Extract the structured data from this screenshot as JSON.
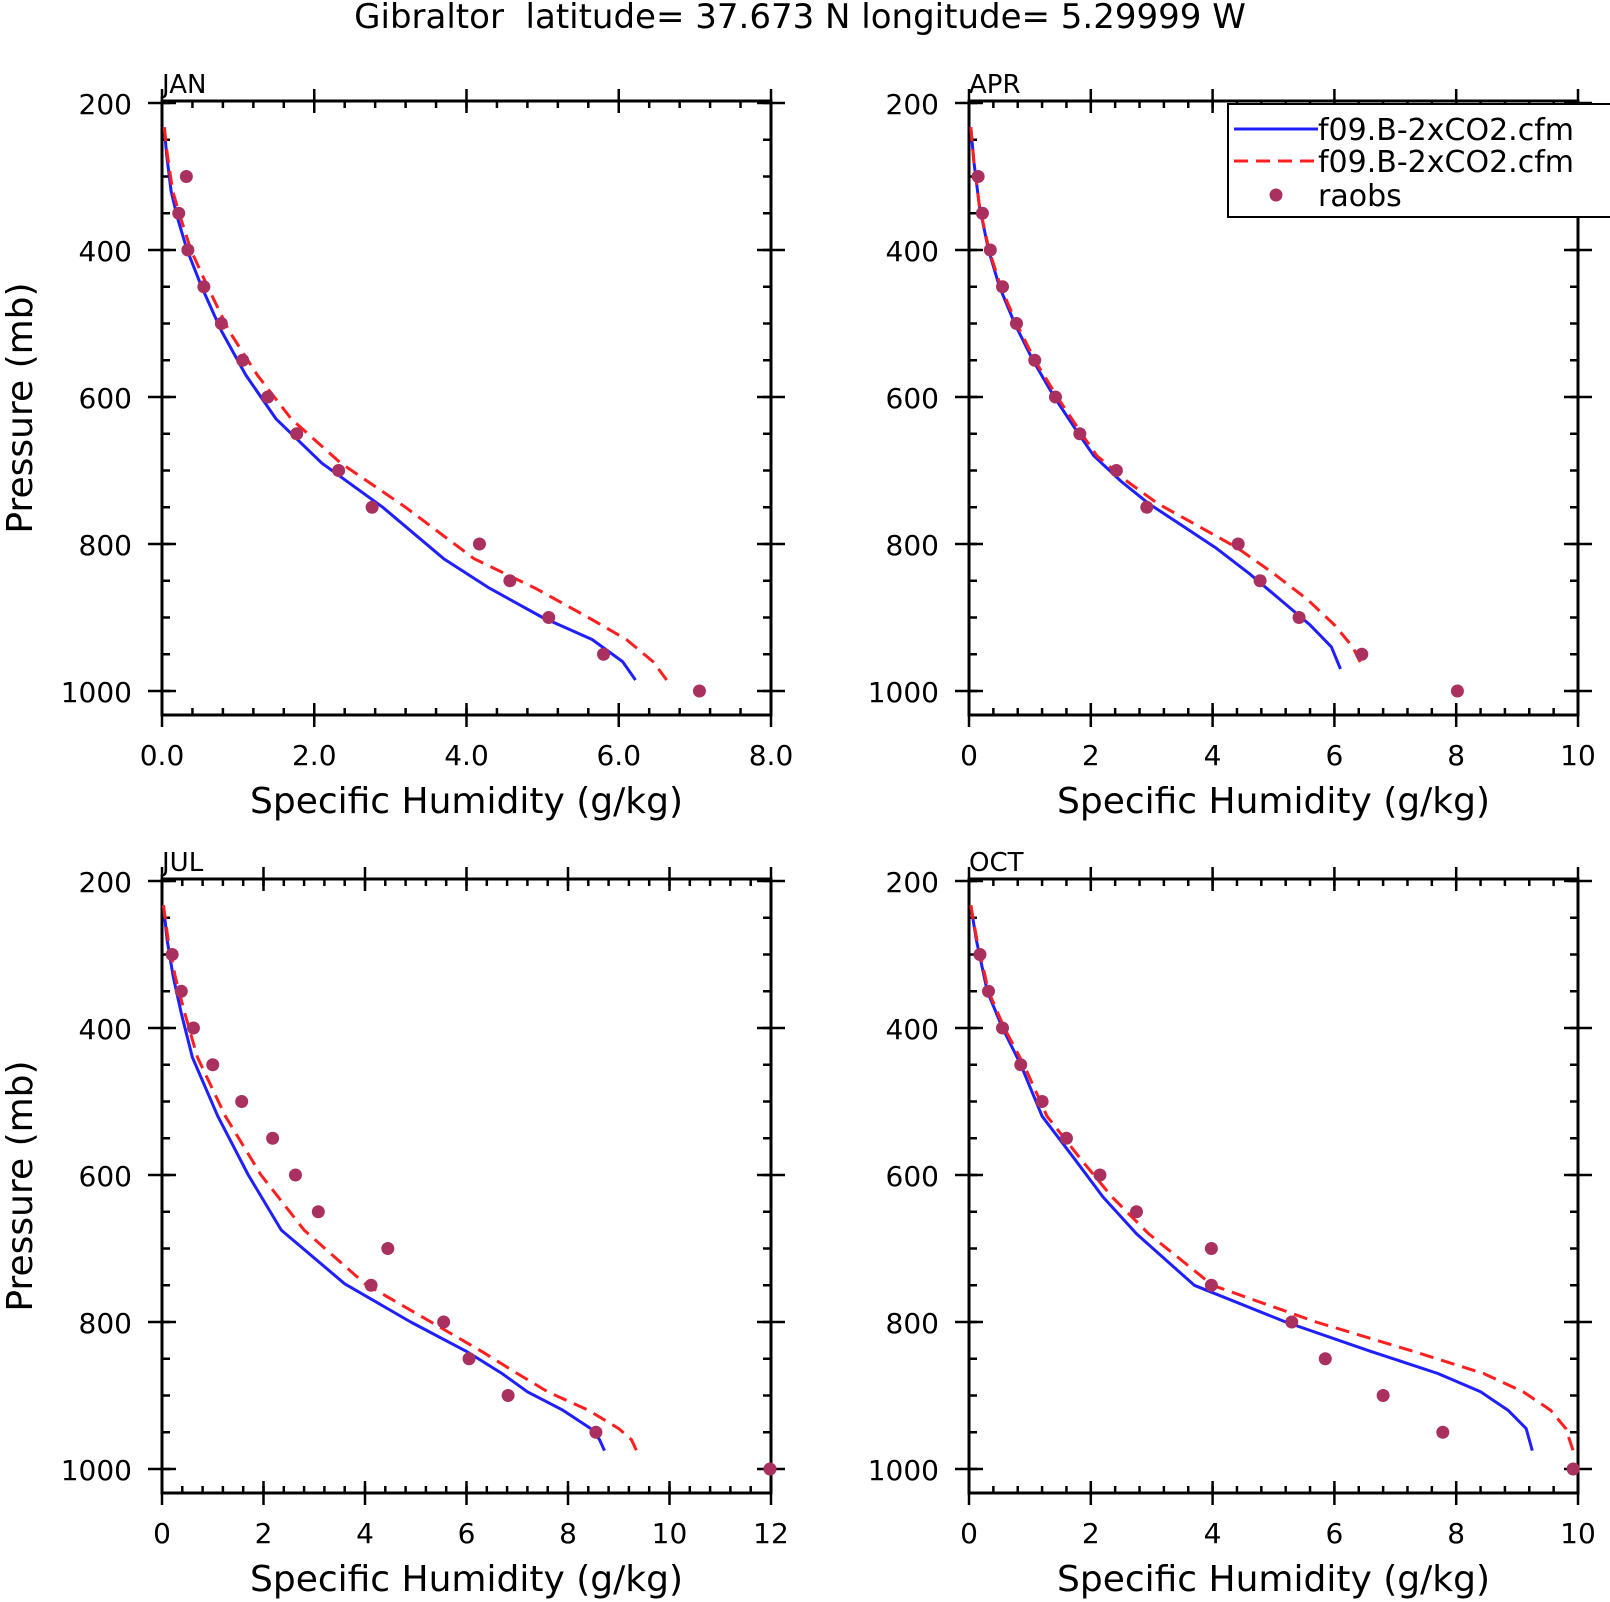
{
  "title": "Gibraltor  latitude= 37.673 N longitude= 5.29999 W",
  "colors": {
    "model_solid": "#1f1fff",
    "model_dashed": "#ff1f1f",
    "raobs": "#aa3060",
    "axes": "#000000"
  },
  "legend": {
    "entries": [
      "f09.B-2xCO2.cfm",
      "f09.B-2xCO2.cfm",
      "raobs"
    ]
  },
  "chart_data": [
    {
      "type": "line",
      "title": "JAN",
      "xlabel": "Specific Humidity (g/kg)",
      "ylabel": "Pressure (mb)",
      "xlim": [
        0,
        8
      ],
      "ylim": [
        200,
        1000
      ],
      "y_inverted": true,
      "xticks": [
        "0.0",
        "2.0",
        "4.0",
        "6.0",
        "8.0"
      ],
      "yticks": [
        "200",
        "400",
        "600",
        "800",
        "1000"
      ],
      "series": [
        {
          "name": "f09.B-2xCO2.cfm",
          "style": "solid",
          "color": "#1f1fff",
          "x": [
            0.03,
            0.06,
            0.12,
            0.2,
            0.33,
            0.52,
            0.78,
            1.1,
            1.5,
            2.1,
            2.9,
            3.7,
            4.3,
            5.0,
            5.65,
            6.05,
            6.22
          ],
          "y": [
            233,
            270,
            320,
            355,
            400,
            450,
            510,
            570,
            630,
            690,
            750,
            820,
            860,
            900,
            930,
            960,
            985
          ]
        },
        {
          "name": "f09.B-2xCO2.cfm",
          "style": "dashed",
          "color": "#ff1f1f",
          "x": [
            0.03,
            0.07,
            0.14,
            0.24,
            0.38,
            0.6,
            0.88,
            1.25,
            1.7,
            2.35,
            3.2,
            4.1,
            4.9,
            5.6,
            6.1,
            6.45,
            6.63
          ],
          "y": [
            233,
            270,
            320,
            355,
            400,
            450,
            510,
            570,
            630,
            690,
            750,
            820,
            860,
            900,
            930,
            960,
            985
          ]
        },
        {
          "name": "raobs",
          "style": "markers",
          "color": "#aa3060",
          "x": [
            0.32,
            0.22,
            0.34,
            0.55,
            0.78,
            1.06,
            1.39,
            1.77,
            2.32,
            2.76,
            4.17,
            4.57,
            5.08,
            5.8,
            7.06
          ],
          "y": [
            300,
            350,
            400,
            450,
            500,
            550,
            600,
            650,
            700,
            750,
            800,
            850,
            900,
            950,
            1000
          ]
        }
      ]
    },
    {
      "type": "line",
      "title": "APR",
      "xlabel": "Specific Humidity (g/kg)",
      "ylabel": "",
      "xlim": [
        0,
        10
      ],
      "ylim": [
        200,
        1000
      ],
      "y_inverted": true,
      "xticks": [
        "0",
        "2",
        "4",
        "6",
        "8",
        "10"
      ],
      "yticks": [
        "200",
        "400",
        "600",
        "800",
        "1000"
      ],
      "series": [
        {
          "name": "f09.B-2xCO2.cfm",
          "style": "solid",
          "color": "#1f1fff",
          "x": [
            0.03,
            0.08,
            0.17,
            0.32,
            0.5,
            0.75,
            1.05,
            1.4,
            1.8,
            2.05,
            2.5,
            2.95,
            3.5,
            4.05,
            4.6,
            5.1,
            5.6,
            5.95,
            6.1
          ],
          "y": [
            233,
            280,
            340,
            400,
            450,
            500,
            550,
            600,
            650,
            680,
            715,
            745,
            775,
            805,
            840,
            875,
            910,
            940,
            970
          ]
        },
        {
          "name": "f09.B-2xCO2.cfm",
          "style": "dashed",
          "color": "#ff1f1f",
          "x": [
            0.03,
            0.08,
            0.17,
            0.33,
            0.52,
            0.78,
            1.08,
            1.45,
            1.85,
            2.1,
            2.6,
            3.1,
            3.75,
            4.4,
            5.0,
            5.55,
            6.0,
            6.3,
            6.48
          ],
          "y": [
            233,
            280,
            340,
            400,
            450,
            500,
            550,
            600,
            650,
            680,
            715,
            745,
            775,
            805,
            840,
            875,
            910,
            940,
            970
          ]
        },
        {
          "name": "raobs",
          "style": "markers",
          "color": "#aa3060",
          "x": [
            0.15,
            0.22,
            0.35,
            0.55,
            0.78,
            1.08,
            1.42,
            1.82,
            2.42,
            2.92,
            4.42,
            4.78,
            5.42,
            6.45,
            8.02
          ],
          "y": [
            300,
            350,
            400,
            450,
            500,
            550,
            600,
            650,
            700,
            750,
            800,
            850,
            900,
            950,
            1000
          ]
        }
      ]
    },
    {
      "type": "line",
      "title": "JUL",
      "xlabel": "Specific Humidity (g/kg)",
      "ylabel": "Pressure (mb)",
      "xlim": [
        0,
        12
      ],
      "ylim": [
        200,
        1000
      ],
      "y_inverted": true,
      "xticks": [
        "0",
        "2",
        "4",
        "6",
        "8",
        "10",
        "12"
      ],
      "yticks": [
        "200",
        "400",
        "600",
        "800",
        "1000"
      ],
      "series": [
        {
          "name": "f09.B-2xCO2.cfm",
          "style": "solid",
          "color": "#1f1fff",
          "x": [
            0.03,
            0.1,
            0.22,
            0.38,
            0.6,
            1.1,
            1.7,
            2.35,
            3.6,
            4.9,
            6.0,
            6.7,
            7.2,
            7.9,
            8.45,
            8.62,
            8.72
          ],
          "y": [
            233,
            280,
            330,
            380,
            440,
            520,
            600,
            675,
            748,
            800,
            840,
            870,
            895,
            920,
            945,
            960,
            975
          ]
        },
        {
          "name": "f09.B-2xCO2.cfm",
          "style": "dashed",
          "color": "#ff1f1f",
          "x": [
            0.03,
            0.12,
            0.26,
            0.45,
            0.7,
            1.25,
            1.95,
            2.8,
            4.0,
            5.3,
            6.3,
            7.0,
            7.6,
            8.4,
            9.0,
            9.25,
            9.35
          ],
          "y": [
            233,
            280,
            330,
            380,
            440,
            520,
            600,
            675,
            748,
            800,
            840,
            870,
            895,
            920,
            945,
            960,
            975
          ]
        },
        {
          "name": "raobs",
          "style": "markers",
          "color": "#aa3060",
          "x": [
            0.2,
            0.38,
            0.62,
            1.0,
            1.57,
            2.18,
            2.63,
            3.08,
            4.45,
            4.12,
            5.55,
            6.05,
            6.82,
            8.55,
            11.98
          ],
          "y": [
            300,
            350,
            400,
            450,
            500,
            550,
            600,
            650,
            700,
            750,
            800,
            850,
            900,
            950,
            1000
          ]
        }
      ]
    },
    {
      "type": "line",
      "title": "OCT",
      "xlabel": "Specific Humidity (g/kg)",
      "ylabel": "",
      "xlim": [
        0,
        10
      ],
      "ylim": [
        200,
        1000
      ],
      "y_inverted": true,
      "xticks": [
        "0",
        "2",
        "4",
        "6",
        "8",
        "10"
      ],
      "yticks": [
        "200",
        "400",
        "600",
        "800",
        "1000"
      ],
      "series": [
        {
          "name": "f09.B-2xCO2.cfm",
          "style": "solid",
          "color": "#1f1fff",
          "x": [
            0.03,
            0.12,
            0.3,
            0.55,
            0.85,
            1.2,
            1.75,
            2.2,
            2.75,
            3.7,
            5.2,
            6.6,
            7.7,
            8.4,
            8.85,
            9.15,
            9.25
          ],
          "y": [
            233,
            280,
            350,
            400,
            450,
            520,
            580,
            630,
            680,
            750,
            800,
            840,
            870,
            895,
            920,
            945,
            975
          ]
        },
        {
          "name": "f09.B-2xCO2.cfm",
          "style": "dashed",
          "color": "#ff1f1f",
          "x": [
            0.03,
            0.13,
            0.32,
            0.58,
            0.9,
            1.28,
            1.85,
            2.35,
            2.95,
            4.0,
            5.7,
            7.3,
            8.45,
            9.1,
            9.55,
            9.8,
            9.92
          ],
          "y": [
            233,
            280,
            350,
            400,
            450,
            520,
            580,
            630,
            680,
            750,
            800,
            840,
            870,
            895,
            920,
            945,
            975
          ]
        },
        {
          "name": "raobs",
          "style": "markers",
          "color": "#aa3060",
          "x": [
            0.18,
            0.32,
            0.55,
            0.85,
            1.2,
            1.6,
            2.15,
            2.75,
            3.98,
            3.98,
            5.3,
            5.85,
            6.8,
            7.78,
            9.92
          ],
          "y": [
            300,
            350,
            400,
            450,
            500,
            550,
            600,
            650,
            700,
            750,
            800,
            850,
            900,
            950,
            1000
          ]
        }
      ]
    }
  ]
}
